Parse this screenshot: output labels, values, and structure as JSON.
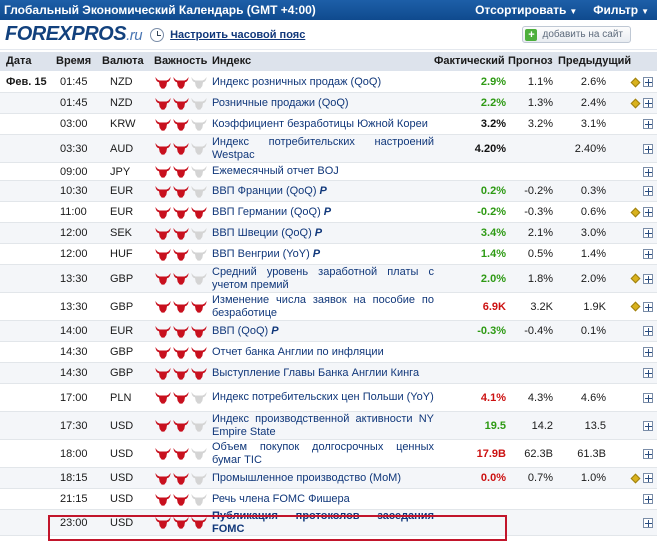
{
  "header": {
    "title": "Глобальный Экономический Календарь (GMT +4:00)",
    "sort_label": "Отсортировать",
    "filter_label": "Фильтр"
  },
  "brand": {
    "logo_main": "FOREXPROS",
    "logo_suffix": ".ru",
    "timezone_link": "Настроить часовой пояс",
    "add_site_label": "добавить на сайт"
  },
  "columns": {
    "date": "Дата",
    "time": "Время",
    "currency": "Валюта",
    "importance": "Важность",
    "event": "Индекс",
    "actual": "Фактический",
    "forecast": "Прогноз",
    "previous": "Предыдущий"
  },
  "colors": {
    "positive": "#2e9a14",
    "negative": "#cc1111",
    "bull_active": "#c8101e",
    "bull_inactive": "#d4d4d4",
    "highlight_border": "#c2152b"
  },
  "rows": [
    {
      "date": "Фев. 15",
      "time": "01:45",
      "currency": "NZD",
      "importance": 2,
      "event": "Индекс розничных продаж (QoQ)",
      "actual": "2.9%",
      "actual_color": "green",
      "forecast": "1.1%",
      "previous": "2.6%",
      "diamond": true
    },
    {
      "date": "",
      "time": "01:45",
      "currency": "NZD",
      "importance": 2,
      "event": "Розничные продажи (QoQ)",
      "actual": "2.2%",
      "actual_color": "green",
      "forecast": "1.3%",
      "previous": "2.4%",
      "diamond": true
    },
    {
      "date": "",
      "time": "03:00",
      "currency": "KRW",
      "importance": 2,
      "event": "Коэффициент безработицы Южной Кореи",
      "actual": "3.2%",
      "actual_color": "black",
      "forecast": "3.2%",
      "previous": "3.1%",
      "diamond": false
    },
    {
      "date": "",
      "time": "03:30",
      "currency": "AUD",
      "importance": 2,
      "event": "Индекс потребительских настроений Westpac",
      "actual": "4.20%",
      "actual_color": "black",
      "forecast": "",
      "previous": "2.40%",
      "diamond": false
    },
    {
      "date": "",
      "time": "09:00",
      "currency": "JPY",
      "importance": 2,
      "event": "Ежемесячный отчет BOJ",
      "actual": "",
      "actual_color": "black",
      "forecast": "",
      "previous": "",
      "diamond": false
    },
    {
      "date": "",
      "time": "10:30",
      "currency": "EUR",
      "importance": 2,
      "event": "ВВП Франции (QoQ)",
      "prelim": "P",
      "actual": "0.2%",
      "actual_color": "green",
      "forecast": "-0.2%",
      "previous": "0.3%",
      "diamond": false
    },
    {
      "date": "",
      "time": "11:00",
      "currency": "EUR",
      "importance": 3,
      "event": "ВВП Германии (QoQ)",
      "prelim": "P",
      "actual": "-0.2%",
      "actual_color": "green",
      "forecast": "-0.3%",
      "previous": "0.6%",
      "diamond": true
    },
    {
      "date": "",
      "time": "12:00",
      "currency": "SEK",
      "importance": 2,
      "event": "ВВП Швеции (QoQ)",
      "prelim": "P",
      "actual": "3.4%",
      "actual_color": "green",
      "forecast": "2.1%",
      "previous": "3.0%",
      "diamond": false
    },
    {
      "date": "",
      "time": "12:00",
      "currency": "HUF",
      "importance": 2,
      "event": "ВВП Венгрии (YoY)",
      "prelim": "P",
      "actual": "1.4%",
      "actual_color": "green",
      "forecast": "0.5%",
      "previous": "1.4%",
      "diamond": false
    },
    {
      "date": "",
      "time": "13:30",
      "currency": "GBP",
      "importance": 2,
      "event": "Средний уровень заработной платы с учетом премий",
      "actual": "2.0%",
      "actual_color": "green",
      "forecast": "1.8%",
      "previous": "2.0%",
      "diamond": true
    },
    {
      "date": "",
      "time": "13:30",
      "currency": "GBP",
      "importance": 3,
      "event": "Изменение числа заявок на пособие по безработице",
      "actual": "6.9K",
      "actual_color": "red",
      "forecast": "3.2K",
      "previous": "1.9K",
      "diamond": true
    },
    {
      "date": "",
      "time": "14:00",
      "currency": "EUR",
      "importance": 3,
      "event": "ВВП (QoQ)",
      "prelim": "P",
      "actual": "-0.3%",
      "actual_color": "green",
      "forecast": "-0.4%",
      "previous": "0.1%",
      "diamond": false
    },
    {
      "date": "",
      "time": "14:30",
      "currency": "GBP",
      "importance": 3,
      "event": "Отчет банка Англии по инфляции",
      "actual": "",
      "actual_color": "black",
      "forecast": "",
      "previous": "",
      "diamond": false
    },
    {
      "date": "",
      "time": "14:30",
      "currency": "GBP",
      "importance": 3,
      "event": "Выступление Главы Банка Англии Кинга",
      "actual": "",
      "actual_color": "black",
      "forecast": "",
      "previous": "",
      "diamond": false
    },
    {
      "date": "",
      "time": "17:00",
      "currency": "PLN",
      "importance": 2,
      "event": "Индекс потребительских цен Польши (YoY)",
      "actual": "4.1%",
      "actual_color": "red",
      "forecast": "4.3%",
      "previous": "4.6%",
      "diamond": false
    },
    {
      "date": "",
      "time": "17:30",
      "currency": "USD",
      "importance": 2,
      "event": "Индекс производственной активности NY Empire State",
      "actual": "19.5",
      "actual_color": "green",
      "forecast": "14.2",
      "previous": "13.5",
      "diamond": false
    },
    {
      "date": "",
      "time": "18:00",
      "currency": "USD",
      "importance": 2,
      "event": "Объем покупок долгосрочных ценных бумаг TIC",
      "actual": "17.9B",
      "actual_color": "red",
      "forecast": "62.3B",
      "previous": "61.3B",
      "diamond": false
    },
    {
      "date": "",
      "time": "18:15",
      "currency": "USD",
      "importance": 2,
      "event": "Промышленное производство (MoM)",
      "actual": "0.0%",
      "actual_color": "red",
      "forecast": "0.7%",
      "previous": "1.0%",
      "diamond": true
    },
    {
      "date": "",
      "time": "21:15",
      "currency": "USD",
      "importance": 2,
      "event": "Речь члена FOMC Фишера",
      "actual": "",
      "actual_color": "black",
      "forecast": "",
      "previous": "",
      "diamond": false
    },
    {
      "date": "",
      "time": "23:00",
      "currency": "USD",
      "importance": 3,
      "event": "Публикация протоколов заседания FOMC",
      "actual": "",
      "actual_color": "black",
      "forecast": "",
      "previous": "",
      "diamond": false,
      "bold": true
    }
  ]
}
